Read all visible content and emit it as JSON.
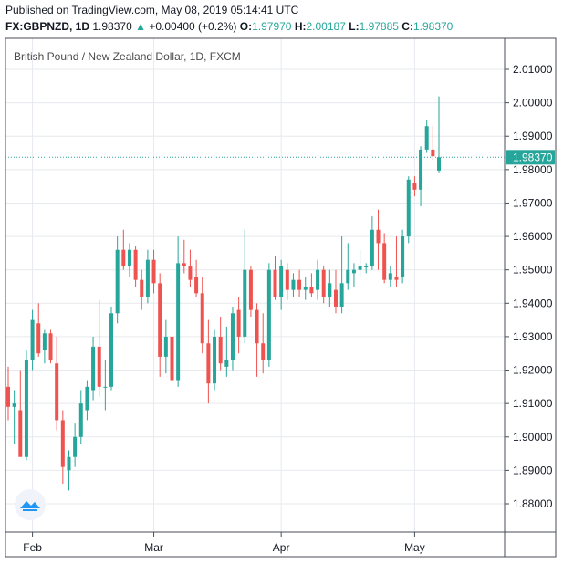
{
  "header": {
    "published": "Published on TradingView.com, May 08, 2019 05:14:41 UTC",
    "symbol": "FX:GBPNZD, 1D",
    "last": "1.98370",
    "change_arrow": "▲",
    "change": "+0.00400 (+0.2%)",
    "o_label": "O:",
    "o_value": "1.97970",
    "h_label": "H:",
    "h_value": "2.00187",
    "l_label": "L:",
    "l_value": "1.97885",
    "c_label": "C:",
    "c_value": "1.98370"
  },
  "colors": {
    "up": "#26a69a",
    "down": "#ef5350",
    "grid": "#e6e9ee",
    "axis": "#4a4e59",
    "last_price_line": "#26a69a"
  },
  "logo_icon": "tradingview-logo-icon",
  "chart_data": {
    "type": "candlestick",
    "title": "British Pound / New Zealand Dollar, 1D, FXCM",
    "x_labels": [
      "Feb",
      "Mar",
      "Apr",
      "May"
    ],
    "y_ticks": [
      "2.01000",
      "2.00000",
      "1.99000",
      "1.98000",
      "1.97000",
      "1.96000",
      "1.95000",
      "1.94000",
      "1.93000",
      "1.92000",
      "1.91000",
      "1.90000",
      "1.89000",
      "1.88000"
    ],
    "ylim": [
      1.875,
      2.014
    ],
    "last_price": "1.98370",
    "grid": true,
    "candles": [
      {
        "d": "2019-01-28",
        "o": 1.915,
        "h": 1.921,
        "l": 1.905,
        "c": 1.909
      },
      {
        "d": "2019-01-29",
        "o": 1.909,
        "h": 1.914,
        "l": 1.898,
        "c": 1.91
      },
      {
        "d": "2019-01-30",
        "o": 1.908,
        "h": 1.92,
        "l": 1.895,
        "c": 1.894
      },
      {
        "d": "2019-01-31",
        "o": 1.894,
        "h": 1.926,
        "l": 1.893,
        "c": 1.923
      },
      {
        "d": "2019-02-01",
        "o": 1.923,
        "h": 1.938,
        "l": 1.92,
        "c": 1.935
      },
      {
        "d": "2019-02-04",
        "o": 1.934,
        "h": 1.94,
        "l": 1.924,
        "c": 1.925
      },
      {
        "d": "2019-02-05",
        "o": 1.926,
        "h": 1.932,
        "l": 1.922,
        "c": 1.931
      },
      {
        "d": "2019-02-06",
        "o": 1.931,
        "h": 1.932,
        "l": 1.922,
        "c": 1.923
      },
      {
        "d": "2019-02-07",
        "o": 1.922,
        "h": 1.93,
        "l": 1.902,
        "c": 1.905
      },
      {
        "d": "2019-02-08",
        "o": 1.905,
        "h": 1.908,
        "l": 1.886,
        "c": 1.891
      },
      {
        "d": "2019-02-11",
        "o": 1.89,
        "h": 1.896,
        "l": 1.884,
        "c": 1.894
      },
      {
        "d": "2019-02-12",
        "o": 1.894,
        "h": 1.904,
        "l": 1.891,
        "c": 1.9
      },
      {
        "d": "2019-02-13",
        "o": 1.9,
        "h": 1.914,
        "l": 1.898,
        "c": 1.91
      },
      {
        "d": "2019-02-14",
        "o": 1.908,
        "h": 1.917,
        "l": 1.905,
        "c": 1.915
      },
      {
        "d": "2019-02-15",
        "o": 1.914,
        "h": 1.93,
        "l": 1.911,
        "c": 1.927
      },
      {
        "d": "2019-02-18",
        "o": 1.927,
        "h": 1.941,
        "l": 1.912,
        "c": 1.915
      },
      {
        "d": "2019-02-19",
        "o": 1.915,
        "h": 1.923,
        "l": 1.908,
        "c": 1.915
      },
      {
        "d": "2019-02-20",
        "o": 1.915,
        "h": 1.939,
        "l": 1.914,
        "c": 1.937
      },
      {
        "d": "2019-02-21",
        "o": 1.937,
        "h": 1.96,
        "l": 1.934,
        "c": 1.956
      },
      {
        "d": "2019-02-22",
        "o": 1.956,
        "h": 1.962,
        "l": 1.95,
        "c": 1.951
      },
      {
        "d": "2019-02-25",
        "o": 1.951,
        "h": 1.958,
        "l": 1.948,
        "c": 1.956
      },
      {
        "d": "2019-02-26",
        "o": 1.956,
        "h": 1.957,
        "l": 1.945,
        "c": 1.947
      },
      {
        "d": "2019-02-27",
        "o": 1.947,
        "h": 1.95,
        "l": 1.938,
        "c": 1.942
      },
      {
        "d": "2019-02-28",
        "o": 1.942,
        "h": 1.956,
        "l": 1.94,
        "c": 1.953
      },
      {
        "d": "2019-03-01",
        "o": 1.953,
        "h": 1.956,
        "l": 1.943,
        "c": 1.946
      },
      {
        "d": "2019-03-04",
        "o": 1.946,
        "h": 1.949,
        "l": 1.918,
        "c": 1.924
      },
      {
        "d": "2019-03-05",
        "o": 1.924,
        "h": 1.935,
        "l": 1.919,
        "c": 1.93
      },
      {
        "d": "2019-03-06",
        "o": 1.93,
        "h": 1.934,
        "l": 1.913,
        "c": 1.917
      },
      {
        "d": "2019-03-07",
        "o": 1.917,
        "h": 1.96,
        "l": 1.915,
        "c": 1.952
      },
      {
        "d": "2019-03-08",
        "o": 1.952,
        "h": 1.959,
        "l": 1.949,
        "c": 1.951
      },
      {
        "d": "2019-03-11",
        "o": 1.951,
        "h": 1.956,
        "l": 1.945,
        "c": 1.947
      },
      {
        "d": "2019-03-12",
        "o": 1.948,
        "h": 1.953,
        "l": 1.942,
        "c": 1.943
      },
      {
        "d": "2019-03-13",
        "o": 1.943,
        "h": 1.948,
        "l": 1.925,
        "c": 1.928
      },
      {
        "d": "2019-03-14",
        "o": 1.928,
        "h": 1.935,
        "l": 1.91,
        "c": 1.916
      },
      {
        "d": "2019-03-15",
        "o": 1.916,
        "h": 1.932,
        "l": 1.914,
        "c": 1.93
      },
      {
        "d": "2019-03-18",
        "o": 1.93,
        "h": 1.936,
        "l": 1.92,
        "c": 1.922
      },
      {
        "d": "2019-03-19",
        "o": 1.921,
        "h": 1.933,
        "l": 1.918,
        "c": 1.923
      },
      {
        "d": "2019-03-20",
        "o": 1.923,
        "h": 1.939,
        "l": 1.92,
        "c": 1.937
      },
      {
        "d": "2019-03-21",
        "o": 1.938,
        "h": 1.942,
        "l": 1.925,
        "c": 1.93
      },
      {
        "d": "2019-03-22",
        "o": 1.93,
        "h": 1.962,
        "l": 1.928,
        "c": 1.95
      },
      {
        "d": "2019-03-25",
        "o": 1.95,
        "h": 1.951,
        "l": 1.936,
        "c": 1.938
      },
      {
        "d": "2019-03-26",
        "o": 1.938,
        "h": 1.94,
        "l": 1.918,
        "c": 1.928
      },
      {
        "d": "2019-03-27",
        "o": 1.928,
        "h": 1.937,
        "l": 1.919,
        "c": 1.923
      },
      {
        "d": "2019-03-28",
        "o": 1.923,
        "h": 1.952,
        "l": 1.921,
        "c": 1.95
      },
      {
        "d": "2019-03-29",
        "o": 1.95,
        "h": 1.954,
        "l": 1.941,
        "c": 1.942
      },
      {
        "d": "2019-04-01",
        "o": 1.942,
        "h": 1.953,
        "l": 1.938,
        "c": 1.951
      },
      {
        "d": "2019-04-02",
        "o": 1.95,
        "h": 1.952,
        "l": 1.941,
        "c": 1.944
      },
      {
        "d": "2019-04-03",
        "o": 1.944,
        "h": 1.949,
        "l": 1.942,
        "c": 1.947
      },
      {
        "d": "2019-04-04",
        "o": 1.947,
        "h": 1.95,
        "l": 1.942,
        "c": 1.944
      },
      {
        "d": "2019-04-05",
        "o": 1.944,
        "h": 1.948,
        "l": 1.941,
        "c": 1.945
      },
      {
        "d": "2019-04-08",
        "o": 1.945,
        "h": 1.949,
        "l": 1.942,
        "c": 1.943
      },
      {
        "d": "2019-04-09",
        "o": 1.944,
        "h": 1.953,
        "l": 1.941,
        "c": 1.95
      },
      {
        "d": "2019-04-10",
        "o": 1.95,
        "h": 1.951,
        "l": 1.94,
        "c": 1.942
      },
      {
        "d": "2019-04-11",
        "o": 1.942,
        "h": 1.95,
        "l": 1.939,
        "c": 1.946
      },
      {
        "d": "2019-04-12",
        "o": 1.944,
        "h": 1.95,
        "l": 1.937,
        "c": 1.939
      },
      {
        "d": "2019-04-15",
        "o": 1.939,
        "h": 1.96,
        "l": 1.937,
        "c": 1.946
      },
      {
        "d": "2019-04-16",
        "o": 1.946,
        "h": 1.958,
        "l": 1.944,
        "c": 1.95
      },
      {
        "d": "2019-04-17",
        "o": 1.949,
        "h": 1.952,
        "l": 1.945,
        "c": 1.95
      },
      {
        "d": "2019-04-18",
        "o": 1.95,
        "h": 1.956,
        "l": 1.948,
        "c": 1.951
      },
      {
        "d": "2019-04-19",
        "o": 1.951,
        "h": 1.952,
        "l": 1.949,
        "c": 1.951
      },
      {
        "d": "2019-04-22",
        "o": 1.951,
        "h": 1.966,
        "l": 1.95,
        "c": 1.962
      },
      {
        "d": "2019-04-23",
        "o": 1.962,
        "h": 1.968,
        "l": 1.95,
        "c": 1.958
      },
      {
        "d": "2019-04-24",
        "o": 1.958,
        "h": 1.961,
        "l": 1.946,
        "c": 1.947
      },
      {
        "d": "2019-04-25",
        "o": 1.947,
        "h": 1.951,
        "l": 1.945,
        "c": 1.949
      },
      {
        "d": "2019-04-26",
        "o": 1.948,
        "h": 1.96,
        "l": 1.945,
        "c": 1.947
      },
      {
        "d": "2019-04-29",
        "o": 1.948,
        "h": 1.962,
        "l": 1.946,
        "c": 1.96
      },
      {
        "d": "2019-04-30",
        "o": 1.96,
        "h": 1.978,
        "l": 1.958,
        "c": 1.977
      },
      {
        "d": "2019-05-01",
        "o": 1.976,
        "h": 1.978,
        "l": 1.972,
        "c": 1.974
      },
      {
        "d": "2019-05-02",
        "o": 1.974,
        "h": 1.987,
        "l": 1.969,
        "c": 1.986
      },
      {
        "d": "2019-05-03",
        "o": 1.986,
        "h": 1.995,
        "l": 1.985,
        "c": 1.993
      },
      {
        "d": "2019-05-06",
        "o": 1.986,
        "h": 1.993,
        "l": 1.983,
        "c": 1.984
      },
      {
        "d": "2019-05-07",
        "o": 1.9797,
        "h": 2.0019,
        "l": 1.9789,
        "c": 1.9837
      }
    ]
  }
}
